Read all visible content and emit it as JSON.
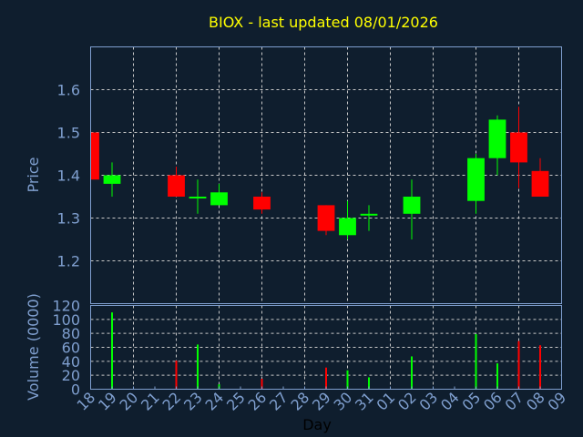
{
  "chart_data": {
    "type": "candlestick",
    "title": "BIOX - last updated 08/01/2026",
    "xlabel": "Day",
    "colors": {
      "up": "#00ff00",
      "down": "#ff0000",
      "background": "#0f1e2e",
      "axis": "#7f9fcf",
      "title": "#ffff00",
      "grid": "#c8c8c8"
    },
    "x_ticks": [
      "18",
      "19",
      "20",
      "21",
      "22",
      "23",
      "24",
      "25",
      "26",
      "27",
      "28",
      "29",
      "30",
      "31",
      "01",
      "02",
      "03",
      "04",
      "05",
      "06",
      "07",
      "08",
      "09"
    ],
    "price_panel": {
      "ylabel": "Price",
      "ylim": [
        1.1,
        1.7
      ],
      "y_ticks": [
        "1.2",
        "1.3",
        "1.4",
        "1.5",
        "1.6"
      ],
      "candles": [
        {
          "day": "18",
          "open": 1.5,
          "high": 1.5,
          "low": 1.39,
          "close": 1.39
        },
        {
          "day": "19",
          "open": 1.38,
          "high": 1.43,
          "low": 1.35,
          "close": 1.4
        },
        {
          "day": "22",
          "open": 1.4,
          "high": 1.42,
          "low": 1.35,
          "close": 1.35
        },
        {
          "day": "23",
          "open": 1.35,
          "high": 1.39,
          "low": 1.31,
          "close": 1.35
        },
        {
          "day": "24",
          "open": 1.33,
          "high": 1.38,
          "low": 1.33,
          "close": 1.36
        },
        {
          "day": "26",
          "open": 1.35,
          "high": 1.36,
          "low": 1.31,
          "close": 1.32
        },
        {
          "day": "29",
          "open": 1.33,
          "high": 1.33,
          "low": 1.26,
          "close": 1.27
        },
        {
          "day": "30",
          "open": 1.26,
          "high": 1.34,
          "low": 1.25,
          "close": 1.3
        },
        {
          "day": "31",
          "open": 1.31,
          "high": 1.33,
          "low": 1.27,
          "close": 1.31
        },
        {
          "day": "02",
          "open": 1.31,
          "high": 1.39,
          "low": 1.25,
          "close": 1.35
        },
        {
          "day": "05",
          "open": 1.34,
          "high": 1.45,
          "low": 1.31,
          "close": 1.44
        },
        {
          "day": "06",
          "open": 1.44,
          "high": 1.54,
          "low": 1.4,
          "close": 1.53
        },
        {
          "day": "07",
          "open": 1.5,
          "high": 1.56,
          "low": 1.37,
          "close": 1.43
        },
        {
          "day": "08",
          "open": 1.41,
          "high": 1.44,
          "low": 1.35,
          "close": 1.35
        }
      ]
    },
    "volume_panel": {
      "ylabel": "Volume (0000)",
      "ylim": [
        0,
        120
      ],
      "y_ticks": [
        "0",
        "20",
        "40",
        "60",
        "80",
        "100",
        "120"
      ],
      "bars": [
        {
          "day": "19",
          "value": 110,
          "direction": "up"
        },
        {
          "day": "22",
          "value": 41,
          "direction": "down"
        },
        {
          "day": "23",
          "value": 64,
          "direction": "up"
        },
        {
          "day": "24",
          "value": 7,
          "direction": "up"
        },
        {
          "day": "26",
          "value": 15,
          "direction": "down"
        },
        {
          "day": "29",
          "value": 31,
          "direction": "down"
        },
        {
          "day": "30",
          "value": 27,
          "direction": "up"
        },
        {
          "day": "31",
          "value": 17,
          "direction": "up"
        },
        {
          "day": "02",
          "value": 47,
          "direction": "up"
        },
        {
          "day": "05",
          "value": 79,
          "direction": "up"
        },
        {
          "day": "06",
          "value": 37,
          "direction": "up"
        },
        {
          "day": "07",
          "value": 69,
          "direction": "down"
        },
        {
          "day": "08",
          "value": 63,
          "direction": "down"
        }
      ]
    }
  }
}
